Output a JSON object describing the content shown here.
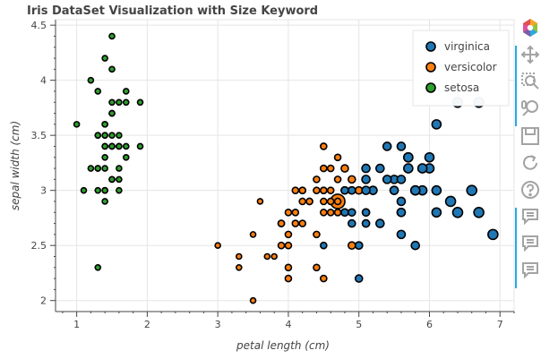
{
  "chart_data": {
    "type": "scatter",
    "title": "Iris DataSet Visualization with Size Keyword",
    "xlabel": "petal length (cm)",
    "ylabel": "sepal width (cm)",
    "xlim": [
      0.7,
      7.2
    ],
    "ylim": [
      1.9,
      4.55
    ],
    "xticks": [
      1,
      2,
      3,
      4,
      5,
      6,
      7
    ],
    "yticks": [
      2,
      2.5,
      3,
      3.5,
      4,
      4.5
    ],
    "xtick_labels": [
      "1",
      "2",
      "3",
      "4",
      "5",
      "6",
      "7"
    ],
    "ytick_labels": [
      "2",
      "2.5",
      "3",
      "3.5",
      "4",
      "4.5"
    ],
    "grid": true,
    "legend_position": "top-right",
    "series": [
      {
        "name": "virginica",
        "color": "#1f77b4",
        "points": [
          {
            "x": 6.0,
            "y": 3.3,
            "s": 8
          },
          {
            "x": 5.1,
            "y": 2.7,
            "s": 6
          },
          {
            "x": 5.9,
            "y": 3.0,
            "s": 8
          },
          {
            "x": 5.6,
            "y": 2.9,
            "s": 7
          },
          {
            "x": 5.8,
            "y": 3.0,
            "s": 8
          },
          {
            "x": 6.6,
            "y": 3.0,
            "s": 9
          },
          {
            "x": 4.5,
            "y": 2.5,
            "s": 5
          },
          {
            "x": 6.3,
            "y": 2.9,
            "s": 9
          },
          {
            "x": 5.8,
            "y": 2.5,
            "s": 7
          },
          {
            "x": 6.1,
            "y": 3.6,
            "s": 8
          },
          {
            "x": 5.1,
            "y": 3.2,
            "s": 7
          },
          {
            "x": 5.3,
            "y": 2.7,
            "s": 7
          },
          {
            "x": 5.5,
            "y": 3.0,
            "s": 7
          },
          {
            "x": 5.0,
            "y": 2.5,
            "s": 6
          },
          {
            "x": 5.1,
            "y": 2.8,
            "s": 6
          },
          {
            "x": 5.3,
            "y": 3.2,
            "s": 7
          },
          {
            "x": 5.5,
            "y": 3.0,
            "s": 7
          },
          {
            "x": 6.7,
            "y": 3.8,
            "s": 9
          },
          {
            "x": 6.9,
            "y": 2.6,
            "s": 9
          },
          {
            "x": 5.0,
            "y": 2.2,
            "s": 6
          },
          {
            "x": 5.7,
            "y": 3.2,
            "s": 8
          },
          {
            "x": 4.9,
            "y": 2.8,
            "s": 6
          },
          {
            "x": 6.7,
            "y": 2.8,
            "s": 9
          },
          {
            "x": 4.9,
            "y": 2.7,
            "s": 6
          },
          {
            "x": 5.7,
            "y": 3.3,
            "s": 8
          },
          {
            "x": 6.0,
            "y": 3.2,
            "s": 8
          },
          {
            "x": 4.8,
            "y": 2.8,
            "s": 6
          },
          {
            "x": 4.9,
            "y": 3.0,
            "s": 6
          },
          {
            "x": 5.6,
            "y": 2.8,
            "s": 7
          },
          {
            "x": 5.8,
            "y": 3.0,
            "s": 8
          },
          {
            "x": 6.1,
            "y": 2.8,
            "s": 8
          },
          {
            "x": 6.4,
            "y": 3.8,
            "s": 9
          },
          {
            "x": 5.6,
            "y": 2.8,
            "s": 7
          },
          {
            "x": 5.1,
            "y": 2.8,
            "s": 6
          },
          {
            "x": 5.6,
            "y": 2.6,
            "s": 7
          },
          {
            "x": 6.1,
            "y": 3.0,
            "s": 8
          },
          {
            "x": 5.6,
            "y": 3.4,
            "s": 7
          },
          {
            "x": 5.5,
            "y": 3.1,
            "s": 7
          },
          {
            "x": 4.8,
            "y": 3.0,
            "s": 6
          },
          {
            "x": 5.4,
            "y": 3.1,
            "s": 7
          },
          {
            "x": 5.6,
            "y": 3.1,
            "s": 7
          },
          {
            "x": 5.1,
            "y": 3.1,
            "s": 7
          },
          {
            "x": 5.9,
            "y": 3.2,
            "s": 8
          },
          {
            "x": 5.7,
            "y": 3.3,
            "s": 8
          },
          {
            "x": 5.2,
            "y": 3.0,
            "s": 7
          },
          {
            "x": 5.0,
            "y": 2.5,
            "s": 6
          },
          {
            "x": 5.2,
            "y": 3.0,
            "s": 7
          },
          {
            "x": 5.4,
            "y": 3.4,
            "s": 7
          },
          {
            "x": 5.1,
            "y": 3.0,
            "s": 7
          },
          {
            "x": 6.4,
            "y": 2.8,
            "s": 9
          }
        ]
      },
      {
        "name": "versicolor",
        "color": "#ff7f0e",
        "points": [
          {
            "x": 4.7,
            "y": 2.9,
            "s": 14
          },
          {
            "x": 4.5,
            "y": 3.2,
            "s": 5
          },
          {
            "x": 4.9,
            "y": 3.1,
            "s": 6
          },
          {
            "x": 4.0,
            "y": 2.3,
            "s": 5
          },
          {
            "x": 4.6,
            "y": 2.8,
            "s": 5
          },
          {
            "x": 4.5,
            "y": 2.8,
            "s": 5
          },
          {
            "x": 4.7,
            "y": 3.3,
            "s": 5
          },
          {
            "x": 3.3,
            "y": 2.4,
            "s": 4
          },
          {
            "x": 4.6,
            "y": 2.9,
            "s": 5
          },
          {
            "x": 3.9,
            "y": 2.7,
            "s": 5
          },
          {
            "x": 3.5,
            "y": 2.0,
            "s": 4
          },
          {
            "x": 4.2,
            "y": 3.0,
            "s": 5
          },
          {
            "x": 4.0,
            "y": 2.2,
            "s": 5
          },
          {
            "x": 4.7,
            "y": 2.9,
            "s": 5
          },
          {
            "x": 3.6,
            "y": 2.9,
            "s": 4
          },
          {
            "x": 4.4,
            "y": 3.1,
            "s": 5
          },
          {
            "x": 4.5,
            "y": 3.0,
            "s": 5
          },
          {
            "x": 4.1,
            "y": 2.7,
            "s": 5
          },
          {
            "x": 4.5,
            "y": 2.2,
            "s": 5
          },
          {
            "x": 3.9,
            "y": 2.5,
            "s": 5
          },
          {
            "x": 4.8,
            "y": 3.2,
            "s": 6
          },
          {
            "x": 4.0,
            "y": 2.8,
            "s": 5
          },
          {
            "x": 4.9,
            "y": 2.5,
            "s": 6
          },
          {
            "x": 4.7,
            "y": 2.8,
            "s": 5
          },
          {
            "x": 4.3,
            "y": 2.9,
            "s": 5
          },
          {
            "x": 4.4,
            "y": 3.0,
            "s": 5
          },
          {
            "x": 4.8,
            "y": 2.8,
            "s": 6
          },
          {
            "x": 5.0,
            "y": 3.0,
            "s": 6
          },
          {
            "x": 4.5,
            "y": 2.9,
            "s": 5
          },
          {
            "x": 3.5,
            "y": 2.6,
            "s": 4
          },
          {
            "x": 3.8,
            "y": 2.4,
            "s": 4
          },
          {
            "x": 3.7,
            "y": 2.4,
            "s": 4
          },
          {
            "x": 3.9,
            "y": 2.7,
            "s": 5
          },
          {
            "x": 5.1,
            "y": 2.7,
            "s": 6
          },
          {
            "x": 4.5,
            "y": 3.0,
            "s": 5
          },
          {
            "x": 4.5,
            "y": 3.4,
            "s": 5
          },
          {
            "x": 4.7,
            "y": 3.1,
            "s": 5
          },
          {
            "x": 4.4,
            "y": 2.3,
            "s": 5
          },
          {
            "x": 4.1,
            "y": 3.0,
            "s": 5
          },
          {
            "x": 4.0,
            "y": 2.5,
            "s": 5
          },
          {
            "x": 4.4,
            "y": 2.6,
            "s": 5
          },
          {
            "x": 4.6,
            "y": 3.0,
            "s": 5
          },
          {
            "x": 4.0,
            "y": 2.6,
            "s": 5
          },
          {
            "x": 3.3,
            "y": 2.3,
            "s": 4
          },
          {
            "x": 4.2,
            "y": 2.7,
            "s": 5
          },
          {
            "x": 4.2,
            "y": 3.0,
            "s": 5
          },
          {
            "x": 4.2,
            "y": 2.9,
            "s": 5
          },
          {
            "x": 4.3,
            "y": 2.9,
            "s": 5
          },
          {
            "x": 3.0,
            "y": 2.5,
            "s": 4
          },
          {
            "x": 4.1,
            "y": 2.8,
            "s": 5
          },
          {
            "x": 4.6,
            "y": 3.2,
            "s": 5
          },
          {
            "x": 4.8,
            "y": 3.0,
            "s": 6
          },
          {
            "x": 4.7,
            "y": 2.8,
            "s": 5
          },
          {
            "x": 4.9,
            "y": 3.0,
            "s": 6
          }
        ]
      },
      {
        "name": "setosa",
        "color": "#2ca02c",
        "points": [
          {
            "x": 1.4,
            "y": 3.5,
            "s": 4
          },
          {
            "x": 1.4,
            "y": 3.0,
            "s": 4
          },
          {
            "x": 1.3,
            "y": 3.2,
            "s": 4
          },
          {
            "x": 1.5,
            "y": 3.1,
            "s": 4
          },
          {
            "x": 1.4,
            "y": 3.6,
            "s": 4
          },
          {
            "x": 1.7,
            "y": 3.9,
            "s": 4
          },
          {
            "x": 1.4,
            "y": 3.4,
            "s": 4
          },
          {
            "x": 1.5,
            "y": 3.4,
            "s": 4
          },
          {
            "x": 1.4,
            "y": 2.9,
            "s": 4
          },
          {
            "x": 1.5,
            "y": 3.1,
            "s": 4
          },
          {
            "x": 1.5,
            "y": 3.7,
            "s": 4
          },
          {
            "x": 1.6,
            "y": 3.4,
            "s": 4
          },
          {
            "x": 1.4,
            "y": 3.0,
            "s": 4
          },
          {
            "x": 1.1,
            "y": 3.0,
            "s": 4
          },
          {
            "x": 1.2,
            "y": 4.0,
            "s": 4
          },
          {
            "x": 1.5,
            "y": 4.4,
            "s": 4
          },
          {
            "x": 1.3,
            "y": 3.9,
            "s": 4
          },
          {
            "x": 1.4,
            "y": 3.5,
            "s": 4
          },
          {
            "x": 1.7,
            "y": 3.8,
            "s": 4
          },
          {
            "x": 1.5,
            "y": 3.8,
            "s": 4
          },
          {
            "x": 1.7,
            "y": 3.4,
            "s": 4
          },
          {
            "x": 1.5,
            "y": 3.7,
            "s": 4
          },
          {
            "x": 1.0,
            "y": 3.6,
            "s": 4
          },
          {
            "x": 1.7,
            "y": 3.3,
            "s": 4
          },
          {
            "x": 1.9,
            "y": 3.4,
            "s": 4
          },
          {
            "x": 1.6,
            "y": 3.0,
            "s": 4
          },
          {
            "x": 1.6,
            "y": 3.4,
            "s": 4
          },
          {
            "x": 1.5,
            "y": 3.5,
            "s": 4
          },
          {
            "x": 1.4,
            "y": 3.4,
            "s": 4
          },
          {
            "x": 1.6,
            "y": 3.2,
            "s": 4
          },
          {
            "x": 1.6,
            "y": 3.1,
            "s": 4
          },
          {
            "x": 1.5,
            "y": 3.4,
            "s": 4
          },
          {
            "x": 1.5,
            "y": 4.1,
            "s": 4
          },
          {
            "x": 1.4,
            "y": 4.2,
            "s": 4
          },
          {
            "x": 1.5,
            "y": 3.1,
            "s": 4
          },
          {
            "x": 1.2,
            "y": 3.2,
            "s": 4
          },
          {
            "x": 1.3,
            "y": 3.5,
            "s": 4
          },
          {
            "x": 1.4,
            "y": 3.6,
            "s": 4
          },
          {
            "x": 1.3,
            "y": 3.0,
            "s": 4
          },
          {
            "x": 1.5,
            "y": 3.4,
            "s": 4
          },
          {
            "x": 1.3,
            "y": 3.5,
            "s": 4
          },
          {
            "x": 1.3,
            "y": 2.3,
            "s": 4
          },
          {
            "x": 1.3,
            "y": 3.2,
            "s": 4
          },
          {
            "x": 1.6,
            "y": 3.5,
            "s": 4
          },
          {
            "x": 1.9,
            "y": 3.8,
            "s": 4
          },
          {
            "x": 1.4,
            "y": 3.0,
            "s": 4
          },
          {
            "x": 1.6,
            "y": 3.8,
            "s": 4
          },
          {
            "x": 1.4,
            "y": 3.2,
            "s": 4
          },
          {
            "x": 1.5,
            "y": 3.7,
            "s": 4
          },
          {
            "x": 1.4,
            "y": 3.3,
            "s": 4
          }
        ]
      }
    ]
  },
  "toolbar": {
    "tools": [
      {
        "icon": "bokeh-logo-icon",
        "active": false
      },
      {
        "icon": "pan-icon",
        "active": true
      },
      {
        "icon": "box-zoom-icon",
        "active": true
      },
      {
        "icon": "wheel-zoom-icon",
        "active": true
      },
      {
        "icon": "save-icon",
        "active": false
      },
      {
        "icon": "reset-icon",
        "active": false
      },
      {
        "icon": "help-icon",
        "active": false
      },
      {
        "icon": "hover-icon",
        "active": true
      },
      {
        "icon": "hover-icon",
        "active": true
      },
      {
        "icon": "hover-icon",
        "active": true
      }
    ],
    "accent_color": "#26aae1",
    "icon_color": "#a3a3a3"
  }
}
